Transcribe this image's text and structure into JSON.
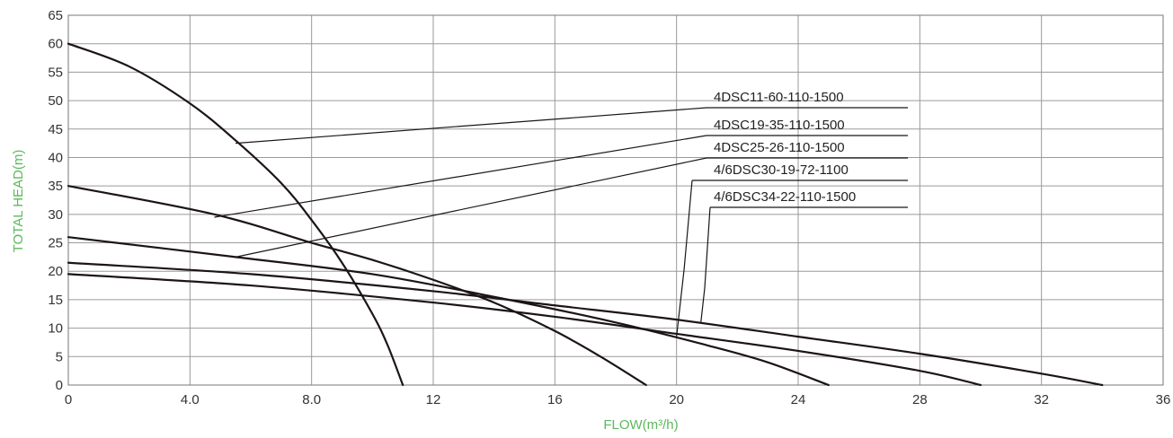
{
  "chart_data": {
    "type": "line",
    "title": "",
    "xlabel": "FLOW(m³/h)",
    "ylabel": "TOTAL HEAD(m)",
    "axis_title_color": "#5cb85c",
    "xlim": [
      0,
      36
    ],
    "ylim": [
      0,
      65
    ],
    "x_ticks": [
      0,
      4,
      8,
      12,
      16,
      20,
      24,
      28,
      32,
      36
    ],
    "x_tick_labels": [
      "0",
      "4.0",
      "8.0",
      "12",
      "16",
      "20",
      "24",
      "28",
      "32",
      "36"
    ],
    "y_ticks": [
      0,
      5,
      10,
      15,
      20,
      25,
      30,
      35,
      40,
      45,
      50,
      55,
      60,
      65
    ],
    "y_tick_labels": [
      "0",
      "5",
      "10",
      "15",
      "20",
      "25",
      "30",
      "35",
      "40",
      "45",
      "50",
      "55",
      "60",
      "65"
    ],
    "grid": true,
    "series": [
      {
        "name": "4DSC11-60-110-1500",
        "x": [
          0,
          2,
          4,
          5.5,
          7,
          8,
          9,
          10,
          10.5,
          11
        ],
        "y": [
          60,
          56,
          49.5,
          43,
          35.5,
          29,
          21.5,
          12.5,
          7,
          0
        ],
        "pointer": [
          5.5,
          42.5
        ]
      },
      {
        "name": "4DSC19-35-110-1500",
        "x": [
          0,
          4.8,
          8,
          10,
          12,
          14,
          16,
          17.5,
          19
        ],
        "y": [
          35,
          30,
          25,
          22,
          18.5,
          14.5,
          9.5,
          5,
          0
        ],
        "pointer": [
          4.8,
          29.5
        ]
      },
      {
        "name": "4DSC25-26-110-1500",
        "x": [
          0,
          5.5,
          10,
          14,
          18,
          21,
          23,
          25
        ],
        "y": [
          26,
          22.5,
          19.5,
          15.5,
          11,
          7,
          4,
          0
        ],
        "pointer": [
          5.5,
          22.5
        ]
      },
      {
        "name": "4/6DSC30-19-72-1100",
        "x": [
          0,
          6,
          12,
          16,
          20,
          24,
          28,
          30
        ],
        "y": [
          19.5,
          17.5,
          14.5,
          12,
          9,
          6,
          2.5,
          0
        ],
        "pointer": [
          20,
          8.5
        ]
      },
      {
        "name": "4/6DSC34-22-110-1500",
        "x": [
          0,
          6,
          12,
          16,
          20,
          24,
          28,
          32,
          34
        ],
        "y": [
          21.5,
          19.5,
          16.5,
          14,
          11.5,
          8.5,
          5.5,
          2,
          0
        ],
        "pointer": [
          20.8,
          11
        ]
      }
    ]
  }
}
